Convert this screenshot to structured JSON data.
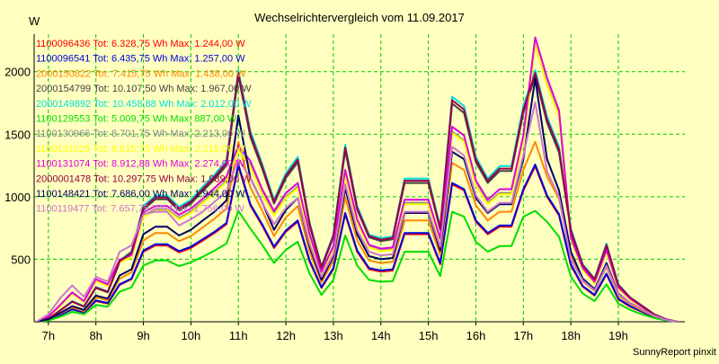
{
  "chart_data": {
    "type": "line",
    "title": "Wechselrichtervergleich vom 11.09.2017",
    "ylabel": "W",
    "xlabel": "",
    "footer": "SunnyReport pinxit",
    "ylim": [
      0,
      2300
    ],
    "xlim": [
      6.7,
      20.4
    ],
    "grid": true,
    "legend_position": "top-left",
    "y_ticks": [
      500,
      1000,
      1500,
      2000
    ],
    "x_ticks": [
      {
        "value": 7,
        "label": "7h"
      },
      {
        "value": 8,
        "label": "8h"
      },
      {
        "value": 9,
        "label": "9h"
      },
      {
        "value": 10,
        "label": "10h"
      },
      {
        "value": 11,
        "label": "11h"
      },
      {
        "value": 12,
        "label": "12h"
      },
      {
        "value": 13,
        "label": "13h"
      },
      {
        "value": 14,
        "label": "14h"
      },
      {
        "value": 15,
        "label": "15h"
      },
      {
        "value": 16,
        "label": "16h"
      },
      {
        "value": 17,
        "label": "17h"
      },
      {
        "value": 18,
        "label": "18h"
      },
      {
        "value": 19,
        "label": "19h"
      }
    ],
    "x": [
      6.75,
      7.0,
      7.25,
      7.5,
      7.75,
      8.0,
      8.25,
      8.5,
      8.75,
      9.0,
      9.25,
      9.5,
      9.75,
      10.0,
      10.25,
      10.5,
      10.75,
      11.0,
      11.25,
      11.5,
      11.75,
      12.0,
      12.25,
      12.5,
      12.75,
      13.0,
      13.25,
      13.5,
      13.75,
      14.0,
      14.25,
      14.5,
      14.75,
      15.0,
      15.25,
      15.5,
      15.75,
      16.0,
      16.25,
      16.5,
      16.75,
      17.0,
      17.25,
      17.5,
      17.75,
      18.0,
      18.25,
      18.5,
      18.75,
      19.0,
      19.25,
      19.5,
      19.75,
      20.0,
      20.25
    ],
    "series": [
      {
        "name": "1100096436 Tot: 6.328,75 Wh Max: 1.244,00 W",
        "color": "#ff0000",
        "values": [
          0,
          15,
          55,
          100,
          75,
          165,
          145,
          295,
          340,
          560,
          610,
          610,
          555,
          590,
          650,
          710,
          780,
          1244,
          930,
          770,
          590,
          720,
          800,
          480,
          270,
          420,
          860,
          560,
          420,
          400,
          410,
          700,
          700,
          700,
          460,
          1100,
          1050,
          800,
          700,
          760,
          760,
          1050,
          1244,
          1000,
          850,
          450,
          280,
          210,
          380,
          180,
          120,
          80,
          40,
          15,
          0
        ]
      },
      {
        "name": "1100096541 Tot: 6.435,75 Wh Max: 1.257,00 W",
        "color": "#0000dd",
        "values": [
          0,
          15,
          55,
          100,
          75,
          170,
          150,
          300,
          345,
          570,
          620,
          620,
          565,
          600,
          660,
          720,
          790,
          1257,
          940,
          780,
          600,
          730,
          810,
          490,
          275,
          430,
          870,
          570,
          430,
          410,
          420,
          710,
          710,
          710,
          470,
          1110,
          1060,
          810,
          710,
          770,
          770,
          1060,
          1257,
          1010,
          860,
          460,
          285,
          215,
          385,
          185,
          125,
          80,
          40,
          15,
          0
        ]
      },
      {
        "name": "2000150822 Tot: 7.415,75 Wh Max: 1.438,00 W",
        "color": "#ff8800",
        "values": [
          0,
          20,
          65,
          115,
          85,
          195,
          170,
          345,
          395,
          650,
          710,
          710,
          645,
          685,
          755,
          825,
          905,
          1438,
          1075,
          890,
          685,
          835,
          925,
          560,
          315,
          490,
          995,
          650,
          490,
          470,
          480,
          810,
          810,
          810,
          535,
          1270,
          1215,
          930,
          810,
          880,
          880,
          1215,
          1438,
          1160,
          985,
          525,
          325,
          245,
          440,
          210,
          140,
          90,
          45,
          15,
          0
        ]
      },
      {
        "name": "2000154799 Tot: 10.107,50 Wh Max: 1.967,00 W",
        "color": "#444444",
        "values": [
          0,
          25,
          90,
          160,
          120,
          270,
          235,
          475,
          545,
          895,
          980,
          980,
          890,
          945,
          1045,
          1140,
          1250,
          1967,
          1480,
          1225,
          945,
          1150,
          1275,
          770,
          430,
          675,
          1370,
          895,
          675,
          645,
          660,
          1110,
          1110,
          1110,
          735,
          1745,
          1670,
          1275,
          1110,
          1205,
          1205,
          1670,
          1967,
          1590,
          1355,
          720,
          445,
          335,
          605,
          290,
          190,
          125,
          60,
          20,
          0
        ]
      },
      {
        "name": "2000149892 Tot: 10.458,88 Wh Max: 2.012,00 W",
        "color": "#00dddd",
        "values": [
          0,
          25,
          92,
          165,
          125,
          278,
          243,
          490,
          563,
          925,
          1010,
          1010,
          920,
          975,
          1080,
          1178,
          1290,
          2012,
          1528,
          1265,
          975,
          1188,
          1318,
          795,
          445,
          698,
          1415,
          925,
          698,
          668,
          683,
          1145,
          1145,
          1145,
          760,
          1800,
          1725,
          1318,
          1145,
          1245,
          1245,
          1725,
          2012,
          1640,
          1400,
          745,
          460,
          345,
          625,
          300,
          195,
          130,
          62,
          20,
          0
        ]
      },
      {
        "name": "1100129553 Tot: 5.009,75 Wh Max: 887,00 W",
        "color": "#00dd00",
        "values": [
          0,
          10,
          40,
          80,
          60,
          135,
          120,
          240,
          275,
          450,
          490,
          490,
          445,
          475,
          520,
          570,
          625,
          887,
          745,
          615,
          470,
          575,
          640,
          385,
          215,
          335,
          690,
          450,
          335,
          320,
          325,
          560,
          560,
          560,
          365,
          880,
          840,
          640,
          560,
          605,
          605,
          840,
          887,
          800,
          680,
          360,
          225,
          165,
          300,
          145,
          95,
          60,
          30,
          10,
          0
        ]
      },
      {
        "name": "1100130966 Tot: 8.701,75 Wh Max: 2.213,00 W",
        "color": "#888888",
        "values": [
          0,
          40,
          130,
          230,
          160,
          330,
          290,
          480,
          520,
          850,
          900,
          900,
          830,
          880,
          960,
          1040,
          1130,
          1380,
          1250,
          1030,
          860,
          1000,
          1080,
          680,
          390,
          590,
          1180,
          800,
          600,
          570,
          580,
          950,
          950,
          950,
          650,
          1520,
          1450,
          1100,
          950,
          1030,
          1030,
          1450,
          2213,
          1900,
          1650,
          660,
          420,
          310,
          560,
          270,
          180,
          120,
          60,
          20,
          0
        ]
      },
      {
        "name": "1100131025 Tot: 8.615,75 Wh Max: 2.215,00 W",
        "color": "#ffff00",
        "values": [
          0,
          38,
          125,
          225,
          155,
          325,
          285,
          475,
          515,
          840,
          890,
          890,
          820,
          870,
          950,
          1030,
          1120,
          1370,
          1240,
          1020,
          850,
          990,
          1070,
          670,
          385,
          585,
          1170,
          790,
          595,
          565,
          575,
          940,
          940,
          940,
          645,
          1510,
          1440,
          1090,
          940,
          1020,
          1020,
          1440,
          2215,
          1890,
          1640,
          655,
          415,
          305,
          555,
          265,
          175,
          115,
          58,
          20,
          0
        ]
      },
      {
        "name": "1100131074 Tot: 8.912,88 Wh Max: 2.274,00 W",
        "color": "#dd00dd",
        "values": [
          0,
          42,
          135,
          235,
          165,
          340,
          300,
          495,
          535,
          875,
          925,
          925,
          855,
          905,
          985,
          1070,
          1160,
          1410,
          1285,
          1060,
          885,
          1030,
          1110,
          700,
          400,
          605,
          1215,
          820,
          615,
          585,
          595,
          975,
          975,
          975,
          665,
          1560,
          1490,
          1130,
          975,
          1060,
          1060,
          1490,
          2274,
          1950,
          1690,
          675,
          430,
          320,
          575,
          275,
          185,
          120,
          60,
          20,
          0
        ]
      },
      {
        "name": "2000001478 Tot: 10.297,75 Wh Max: 1.989,00 W",
        "color": "#990044",
        "values": [
          0,
          26,
          91,
          162,
          122,
          274,
          239,
          483,
          554,
          910,
          995,
          995,
          905,
          960,
          1062,
          1159,
          1270,
          1989,
          1504,
          1245,
          960,
          1169,
          1297,
          782,
          437,
          686,
          1392,
          910,
          686,
          656,
          671,
          1128,
          1128,
          1128,
          747,
          1772,
          1697,
          1297,
          1128,
          1225,
          1225,
          1697,
          1989,
          1615,
          1377,
          732,
          452,
          340,
          615,
          295,
          193,
          127,
          61,
          20,
          0
        ]
      },
      {
        "name": "1100148421 Tot: 7.686,00 Wh Max: 1.944,00 W",
        "color": "#000066",
        "values": [
          0,
          20,
          70,
          125,
          95,
          210,
          185,
          370,
          420,
          700,
          760,
          760,
          690,
          735,
          810,
          880,
          970,
          1650,
          1150,
          955,
          735,
          895,
          990,
          600,
          335,
          525,
          1065,
          700,
          525,
          500,
          510,
          870,
          870,
          870,
          570,
          1360,
          1300,
          990,
          870,
          940,
          940,
          1300,
          1944,
          1300,
          1050,
          560,
          345,
          260,
          470,
          225,
          150,
          100,
          50,
          15,
          0
        ]
      },
      {
        "name": "1100119477 Tot: 7.657,75 Wh Max: 1.756,00 W",
        "color": "#cc77cc",
        "values": [
          0,
          60,
          190,
          290,
          200,
          360,
          320,
          560,
          610,
          860,
          880,
          880,
          770,
          820,
          880,
          960,
          1040,
          1300,
          1150,
          950,
          780,
          910,
          990,
          620,
          360,
          540,
          1100,
          730,
          560,
          530,
          540,
          880,
          880,
          880,
          600,
          1400,
          1330,
          1010,
          880,
          950,
          950,
          1330,
          1756,
          1200,
          1000,
          500,
          330,
          250,
          450,
          220,
          150,
          100,
          50,
          15,
          0
        ]
      }
    ]
  }
}
